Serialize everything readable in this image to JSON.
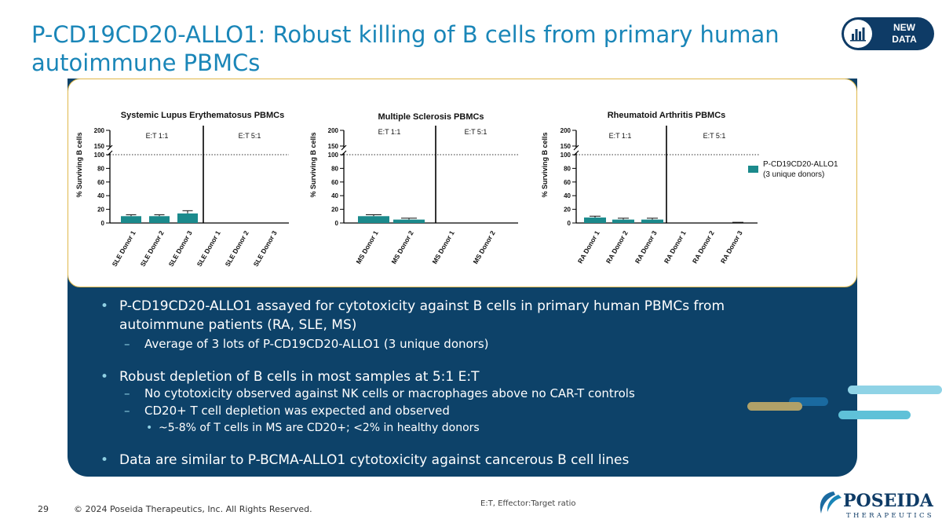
{
  "slide": {
    "title": "P-CD19CD20-ALLO1: Robust killing of B cells from primary human autoimmune PBMCs",
    "badge_line1": "NEW",
    "badge_line2": "DATA",
    "footnote": "E:T, Effector:Target ratio",
    "page_number": "29",
    "copyright": "© 2024 Poseida Therapeutics, Inc. All Rights Reserved.",
    "logo_name": "POSEIDA",
    "logo_sub": "THERAPEUTICS",
    "colors": {
      "title": "#1a86b8",
      "panel": "#0d4269",
      "bar": "#1b8a8c",
      "border": "#e0b84a"
    }
  },
  "bullets": [
    {
      "level": 1,
      "text": "P-CD19CD20-ALLO1 assayed for cytotoxicity against B cells in primary human PBMCs from autoimmune patients (RA, SLE, MS)"
    },
    {
      "level": 2,
      "text": "Average of 3 lots of P-CD19CD20-ALLO1 (3 unique donors)"
    },
    {
      "level": 1,
      "text": "Robust depletion of B cells in most samples at 5:1 E:T"
    },
    {
      "level": 2,
      "text": "No cytotoxicity observed against NK cells or macrophages above no CAR-T controls"
    },
    {
      "level": 2,
      "text": "CD20+ T cell depletion was expected and observed"
    },
    {
      "level": 3,
      "text": "~5-8% of T cells in MS are CD20+; <2% in healthy donors"
    },
    {
      "level": 1,
      "text": "Data are similar to P-BCMA-ALLO1 cytotoxicity against cancerous B cell lines"
    }
  ],
  "legend": {
    "line1": "P-CD19CD20-ALLO1",
    "line2": "(3 unique donors)"
  },
  "chart_data": [
    {
      "type": "bar",
      "title": "Systemic Lupus Erythematosus PBMCs",
      "ylabel": "% Surviving B cells",
      "ylim": [
        0,
        200
      ],
      "axis_break": [
        100,
        150
      ],
      "reference_line": 100,
      "yticks": [
        0,
        20,
        40,
        60,
        80,
        100,
        150,
        200
      ],
      "groups": [
        "E:T 1:1",
        "E:T 5:1"
      ],
      "categories": [
        "SLE Donor 1",
        "SLE Donor 2",
        "SLE Donor 3",
        "SLE Donor 1",
        "SLE Donor 2",
        "SLE Donor 3"
      ],
      "values": [
        10,
        10,
        14,
        0,
        0,
        0
      ],
      "errors": [
        2,
        2,
        4,
        0,
        0,
        0
      ]
    },
    {
      "type": "bar",
      "title": "Multiple Sclerosis PBMCs",
      "ylabel": "% Surviving B cells",
      "ylim": [
        0,
        200
      ],
      "axis_break": [
        100,
        150
      ],
      "reference_line": 100,
      "yticks": [
        0,
        20,
        40,
        60,
        80,
        100,
        150,
        200
      ],
      "groups": [
        "E:T 1:1",
        "E:T 5:1"
      ],
      "categories": [
        "MS Donor 1",
        "MS Donor 2",
        "MS Donor 1",
        "MS Donor 2"
      ],
      "values": [
        10,
        5,
        0,
        0
      ],
      "errors": [
        2,
        2,
        0,
        0
      ]
    },
    {
      "type": "bar",
      "title": "Rheumatoid Arthritis PBMCs",
      "ylabel": "% Surviving B cells",
      "ylim": [
        0,
        200
      ],
      "axis_break": [
        100,
        150
      ],
      "reference_line": 100,
      "yticks": [
        0,
        20,
        40,
        60,
        80,
        100,
        150,
        200
      ],
      "groups": [
        "E:T 1:1",
        "E:T 5:1"
      ],
      "categories": [
        "RA Donor 1",
        "RA Donor 2",
        "RA Donor 3",
        "RA Donor 1",
        "RA Donor 2",
        "RA Donor 3"
      ],
      "values": [
        8,
        5,
        5,
        0,
        0,
        0
      ],
      "errors": [
        2,
        2,
        2,
        0,
        0,
        1
      ]
    }
  ]
}
